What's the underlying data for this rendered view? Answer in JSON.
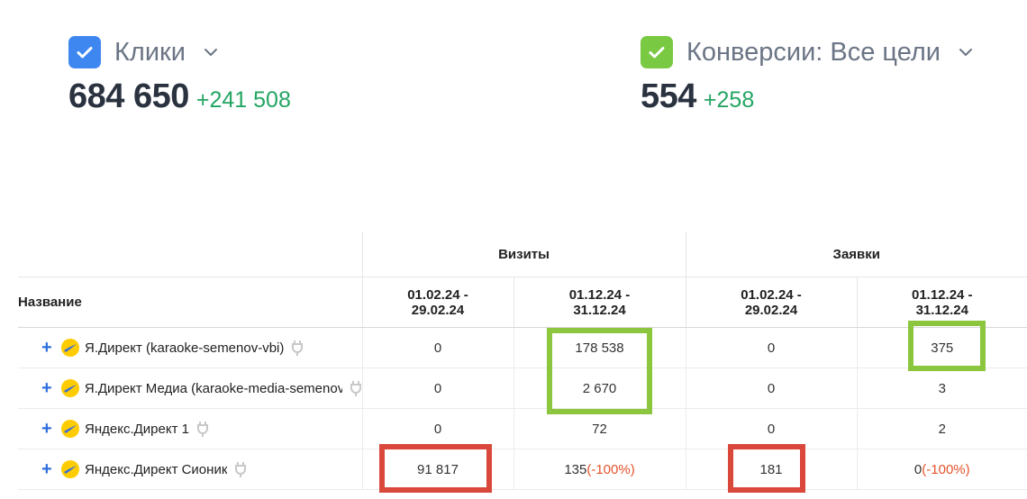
{
  "metrics": [
    {
      "label": "Клики",
      "value": "684 650",
      "delta": "+241 508",
      "checkbox_color": "#3f87f0",
      "icon": "chevron-down-icon"
    },
    {
      "label": "Конверсии: Все цели",
      "value": "554",
      "delta": "+258",
      "checkbox_color": "#7ac943",
      "icon": "chevron-down-icon"
    }
  ],
  "table": {
    "name_header": "Название",
    "groups": [
      "Визиты",
      "Заявки"
    ],
    "periods": [
      "01.02.24 -\n29.02.24",
      "01.12.24 -\n31.12.24",
      "01.02.24 -\n29.02.24",
      "01.12.24 -\n31.12.24"
    ],
    "rows": [
      {
        "name": "Я.Директ (karaoke-semenov-vbi)",
        "values": [
          "0",
          "178 538",
          "0",
          "375"
        ],
        "changes": [
          "",
          "",
          "",
          ""
        ]
      },
      {
        "name": "Я.Директ Медиа (karaoke-media-semenov",
        "values": [
          "0",
          "2 670",
          "0",
          "3"
        ],
        "changes": [
          "",
          "",
          "",
          ""
        ]
      },
      {
        "name": "Яндекс.Директ 1",
        "values": [
          "0",
          "72",
          "0",
          "2"
        ],
        "changes": [
          "",
          "",
          "",
          ""
        ]
      },
      {
        "name": "Яндекс.Директ Сионик",
        "values": [
          "91 817",
          "135",
          "181",
          "0"
        ],
        "changes": [
          "",
          "(-100%)",
          "",
          "(-100%)"
        ]
      }
    ]
  },
  "colors": {
    "positive": "#23a563",
    "negative": "#e5532c",
    "highlight_green": "#8cc63f",
    "highlight_red": "#d9483b",
    "plus": "#2f6fdd"
  }
}
